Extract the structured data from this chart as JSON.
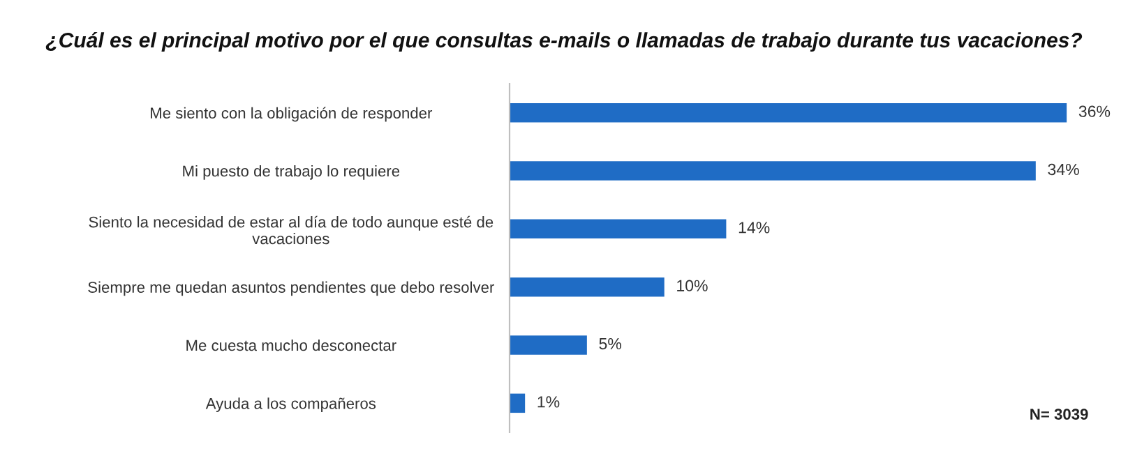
{
  "chart_data": {
    "type": "bar",
    "orientation": "horizontal",
    "title": "¿Cuál es el principal motivo por el que consultas e-mails o llamadas de trabajo durante tus vacaciones?",
    "categories": [
      "Me siento con la obligación de responder",
      "Mi puesto de trabajo lo requiere",
      "Siento la necesidad de estar al día de todo aunque esté de\nvacaciones",
      "Siempre me quedan asuntos pendientes que debo resolver",
      "Me cuesta mucho desconectar",
      "Ayuda a los compañeros"
    ],
    "values": [
      36,
      34,
      14,
      10,
      5,
      1
    ],
    "color": "#1f6cc5",
    "value_labels": [
      "36%",
      "34%",
      "14%",
      "10%",
      "5%",
      "1%"
    ],
    "annotations": [
      "N= 3039"
    ],
    "grid": false,
    "legend": false
  }
}
